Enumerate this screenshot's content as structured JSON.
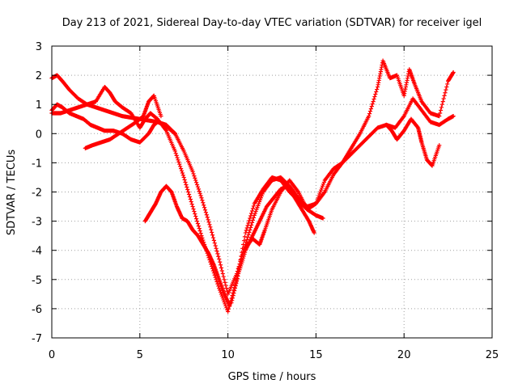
{
  "chart_data": {
    "type": "scatter",
    "title": "Day 213 of 2021, Sidereal Day-to-day VTEC variation (SDTVAR) for receiver igel",
    "xlabel": "GPS time / hours",
    "ylabel": "SDTVAR / TECUs",
    "xlim": [
      0,
      25
    ],
    "ylim": [
      -7,
      3
    ],
    "xticks": [
      "0",
      "5",
      "10",
      "15",
      "20",
      "25"
    ],
    "yticks": [
      "-7",
      "-6",
      "-5",
      "-4",
      "-3",
      "-2",
      "-1",
      "0",
      "1",
      "2",
      "3"
    ],
    "grid": true,
    "marker": "+",
    "color": "#ff0000",
    "series": [
      {
        "x": [
          0,
          0.3,
          0.6,
          1.0,
          1.5,
          2.0,
          2.5,
          3.0,
          3.5,
          4.0,
          4.5,
          5.0,
          5.5,
          6.0,
          6.5,
          7.0,
          7.5,
          8.0,
          8.5,
          9.0,
          9.5,
          10.0,
          10.5,
          11.0,
          11.5,
          12.0,
          12.5,
          13.0,
          13.5,
          14.0,
          14.5,
          15.0,
          15.5,
          16.0,
          16.5,
          17.0,
          17.5,
          18.0,
          18.5,
          19.0,
          19.5,
          20.0,
          20.5,
          21.0,
          21.5,
          22.0,
          22.5,
          22.8
        ],
        "y": [
          1.9,
          2.0,
          1.8,
          1.5,
          1.2,
          1.0,
          0.9,
          0.8,
          0.7,
          0.6,
          0.55,
          0.5,
          0.45,
          0.4,
          0.3,
          0.0,
          -0.6,
          -1.3,
          -2.2,
          -3.2,
          -4.3,
          -5.5,
          -4.8,
          -3.8,
          -2.8,
          -2.0,
          -1.6,
          -1.5,
          -1.8,
          -2.2,
          -2.5,
          -2.4,
          -1.6,
          -1.2,
          -1.0,
          -0.7,
          -0.4,
          -0.1,
          0.2,
          0.3,
          0.2,
          0.6,
          1.2,
          0.8,
          0.4,
          0.3,
          0.5,
          0.6
        ]
      },
      {
        "x": [
          0,
          0.5,
          1.0,
          1.5,
          2.0,
          2.5,
          3.0,
          3.3,
          3.6,
          4.0,
          4.5,
          5.0,
          5.3,
          5.6,
          6.0,
          6.5,
          7.0,
          7.5,
          8.0,
          8.5,
          9.0,
          9.5,
          10.0,
          10.5,
          11.0,
          11.5,
          12.0,
          12.5,
          13.0,
          13.5,
          14.0,
          14.5,
          15.0,
          15.5,
          16.0,
          16.5,
          17.0,
          17.5,
          18.0,
          18.5,
          18.8,
          19.2,
          19.6,
          20.0,
          20.3,
          20.6,
          21.0,
          21.5,
          22.0,
          22.5,
          22.8
        ],
        "y": [
          0.7,
          0.7,
          0.8,
          0.9,
          1.0,
          1.1,
          1.6,
          1.4,
          1.1,
          0.9,
          0.7,
          0.2,
          0.5,
          0.7,
          0.5,
          0.1,
          -0.6,
          -1.5,
          -2.5,
          -3.5,
          -4.4,
          -5.3,
          -6.1,
          -5.0,
          -3.4,
          -2.4,
          -1.9,
          -1.5,
          -1.6,
          -2.0,
          -2.3,
          -2.6,
          -2.4,
          -2.0,
          -1.4,
          -1.0,
          -0.5,
          0.0,
          0.6,
          1.6,
          2.5,
          1.9,
          2.0,
          1.3,
          2.2,
          1.7,
          1.1,
          0.7,
          0.6,
          1.8,
          2.1
        ]
      },
      {
        "x": [
          0,
          0.3,
          0.6,
          1.0,
          1.4,
          1.8,
          2.2,
          2.6,
          3.0,
          3.5,
          4.0,
          4.5,
          5.0,
          5.5,
          5.8,
          6.0,
          6.4,
          6.8,
          7.0
        ],
        "y": [
          0.8,
          1.0,
          0.9,
          0.7,
          0.6,
          0.5,
          0.3,
          0.2,
          0.1,
          0.1,
          0.0,
          -0.2,
          -0.3,
          0.0,
          0.3,
          0.4,
          0.3,
          0.1,
          0.0
        ]
      },
      {
        "x": [
          1.9,
          2.3,
          2.8,
          3.3,
          3.8,
          4.3,
          4.8,
          5.2,
          5.5,
          5.8,
          6.2
        ],
        "y": [
          -0.5,
          -0.4,
          -0.3,
          -0.2,
          0.0,
          0.2,
          0.4,
          0.6,
          1.1,
          1.3,
          0.6
        ]
      },
      {
        "x": [
          5.3,
          5.6,
          5.9,
          6.2,
          6.5,
          6.8,
          7.1,
          7.4,
          7.7,
          8.0,
          8.3,
          8.6,
          8.9,
          9.2,
          9.5,
          9.8,
          10.1
        ],
        "y": [
          -3.0,
          -2.7,
          -2.4,
          -2.0,
          -1.8,
          -2.0,
          -2.5,
          -2.9,
          -3.0,
          -3.3,
          -3.5,
          -3.8,
          -4.1,
          -4.5,
          -5.0,
          -5.5,
          -5.9
        ]
      },
      {
        "x": [
          10.2,
          10.6,
          11.0,
          11.4,
          11.8,
          12.2,
          12.6,
          13.0,
          13.4,
          13.8,
          14.2,
          14.6,
          14.9
        ],
        "y": [
          -5.8,
          -4.8,
          -4.0,
          -3.5,
          -3.0,
          -2.5,
          -2.2,
          -1.9,
          -1.8,
          -2.2,
          -2.6,
          -3.0,
          -3.4
        ]
      },
      {
        "x": [
          11.0,
          11.4,
          11.8,
          12.1,
          12.5,
          13.0,
          13.5,
          14.0,
          14.5,
          15.0,
          15.4
        ],
        "y": [
          -3.9,
          -3.6,
          -3.8,
          -3.3,
          -2.6,
          -2.0,
          -1.6,
          -2.0,
          -2.6,
          -2.8,
          -2.9
        ]
      },
      {
        "x": [
          19.0,
          19.3,
          19.6,
          20.0,
          20.4,
          20.8,
          21.0,
          21.3,
          21.6,
          22.0
        ],
        "y": [
          0.3,
          0.1,
          -0.2,
          0.1,
          0.5,
          0.2,
          -0.3,
          -0.9,
          -1.1,
          -0.4
        ]
      }
    ]
  }
}
